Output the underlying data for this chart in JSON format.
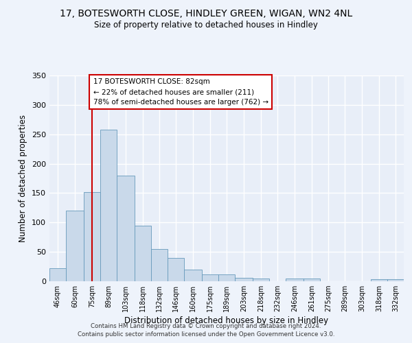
{
  "title": "17, BOTESWORTH CLOSE, HINDLEY GREEN, WIGAN, WN2 4NL",
  "subtitle": "Size of property relative to detached houses in Hindley",
  "xlabel": "Distribution of detached houses by size in Hindley",
  "ylabel": "Number of detached properties",
  "bar_color": "#c9d9ea",
  "bar_edge_color": "#6699bb",
  "background_color": "#e8eef8",
  "grid_color": "#ffffff",
  "bin_labels": [
    "46sqm",
    "60sqm",
    "75sqm",
    "89sqm",
    "103sqm",
    "118sqm",
    "132sqm",
    "146sqm",
    "160sqm",
    "175sqm",
    "189sqm",
    "203sqm",
    "218sqm",
    "232sqm",
    "246sqm",
    "261sqm",
    "275sqm",
    "289sqm",
    "303sqm",
    "318sqm",
    "332sqm"
  ],
  "bar_heights": [
    22,
    120,
    152,
    258,
    180,
    95,
    55,
    40,
    20,
    12,
    12,
    6,
    5,
    0,
    5,
    5,
    0,
    0,
    0,
    3,
    3
  ],
  "bin_edges": [
    46,
    60,
    75,
    89,
    103,
    118,
    132,
    146,
    160,
    175,
    189,
    203,
    218,
    232,
    246,
    261,
    275,
    289,
    303,
    318,
    332,
    346
  ],
  "ylim": [
    0,
    350
  ],
  "yticks": [
    0,
    50,
    100,
    150,
    200,
    250,
    300,
    350
  ],
  "property_size": 82,
  "annotation_title": "17 BOTESWORTH CLOSE: 82sqm",
  "annotation_line1": "← 22% of detached houses are smaller (211)",
  "annotation_line2": "78% of semi-detached houses are larger (762) →",
  "vline_color": "#cc0000",
  "annotation_box_edge": "#cc0000",
  "footer_line1": "Contains HM Land Registry data © Crown copyright and database right 2024.",
  "footer_line2": "Contains public sector information licensed under the Open Government Licence v3.0."
}
